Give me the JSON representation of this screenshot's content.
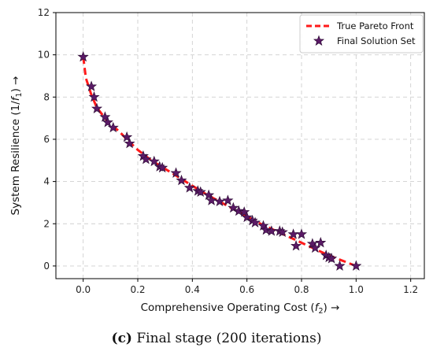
{
  "chart_data": {
    "type": "scatter",
    "xlabel_main": "Comprehensive Operating Cost (",
    "xlabel_var": "f",
    "xlabel_sub": "2",
    "xlabel_end": ") →",
    "ylabel_main": "System Resilience (1/",
    "ylabel_var": "f",
    "ylabel_sub": "1",
    "ylabel_end": ") →",
    "xlim": [
      -0.1,
      1.25
    ],
    "ylim": [
      -0.6,
      12
    ],
    "xticks": [
      0.0,
      0.2,
      0.4,
      0.6,
      0.8,
      1.0,
      1.2
    ],
    "xtick_labels": [
      "0.0",
      "0.2",
      "0.4",
      "0.6",
      "0.8",
      "1.0",
      "1.2"
    ],
    "yticks": [
      0,
      2,
      4,
      6,
      8,
      10,
      12
    ],
    "ytick_labels": [
      "0",
      "2",
      "4",
      "6",
      "8",
      "10",
      "12"
    ],
    "grid": true,
    "legend_position": "top-right",
    "series": [
      {
        "name": "True Pareto Front",
        "kind": "line",
        "style": "dashed",
        "color": "#ff1a1a",
        "x": [
          0.0,
          0.01,
          0.03,
          0.05,
          0.08,
          0.1,
          0.13,
          0.16,
          0.2,
          0.25,
          0.3,
          0.35,
          0.4,
          0.45,
          0.5,
          0.55,
          0.6,
          0.65,
          0.7,
          0.75,
          0.8,
          0.85,
          0.9,
          0.95,
          1.0
        ],
        "y": [
          9.9,
          8.9,
          8.1,
          7.5,
          7.0,
          6.7,
          6.4,
          6.0,
          5.5,
          5.0,
          4.6,
          4.2,
          3.8,
          3.4,
          3.05,
          2.7,
          2.35,
          2.0,
          1.7,
          1.4,
          1.1,
          0.8,
          0.5,
          0.25,
          0.0
        ]
      },
      {
        "name": "Final Solution Set",
        "kind": "scatter",
        "marker": "star",
        "color": "#5a1a66",
        "x": [
          0.0,
          0.03,
          0.04,
          0.05,
          0.08,
          0.09,
          0.11,
          0.16,
          0.17,
          0.22,
          0.23,
          0.26,
          0.28,
          0.29,
          0.34,
          0.36,
          0.39,
          0.42,
          0.43,
          0.46,
          0.47,
          0.5,
          0.53,
          0.55,
          0.57,
          0.59,
          0.6,
          0.62,
          0.63,
          0.66,
          0.67,
          0.69,
          0.72,
          0.73,
          0.77,
          0.78,
          0.8,
          0.84,
          0.85,
          0.87,
          0.89,
          0.9,
          0.91,
          0.94,
          1.0
        ],
        "y": [
          9.9,
          8.5,
          8.0,
          7.45,
          7.05,
          6.8,
          6.55,
          6.1,
          5.8,
          5.2,
          5.05,
          4.95,
          4.7,
          4.65,
          4.4,
          4.05,
          3.7,
          3.55,
          3.5,
          3.35,
          3.1,
          3.05,
          3.1,
          2.75,
          2.6,
          2.55,
          2.3,
          2.15,
          2.05,
          1.9,
          1.7,
          1.65,
          1.65,
          1.6,
          1.5,
          0.95,
          1.5,
          1.05,
          0.85,
          1.1,
          0.5,
          0.4,
          0.35,
          0.0,
          0.0
        ]
      }
    ]
  },
  "caption": {
    "label": "(c)",
    "text": " Final stage (200 iterations)"
  }
}
